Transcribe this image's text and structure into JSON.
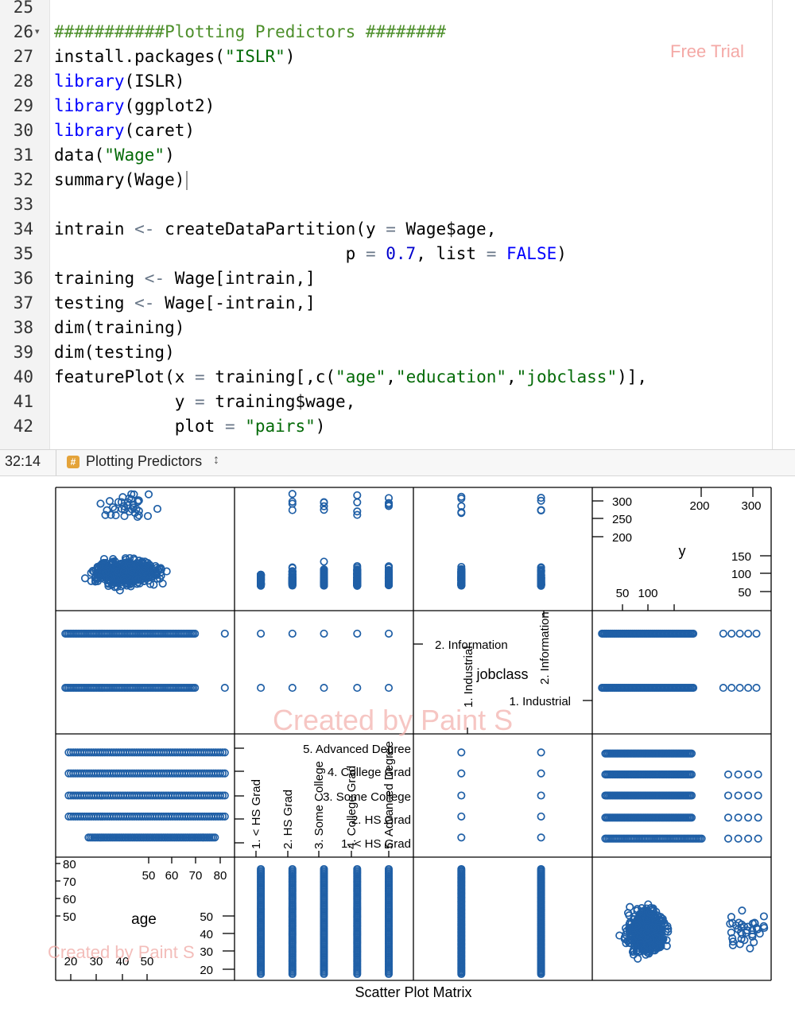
{
  "editor": {
    "lines": [
      {
        "n": "25",
        "fold": false,
        "tokens": []
      },
      {
        "n": "26",
        "fold": true,
        "tokens": [
          {
            "t": "###########Plotting Predictors ########",
            "c": "com"
          }
        ]
      },
      {
        "n": "27",
        "fold": false,
        "tokens": [
          {
            "t": "install.packages(",
            "c": ""
          },
          {
            "t": "\"ISLR\"",
            "c": "str"
          },
          {
            "t": ")",
            "c": ""
          }
        ]
      },
      {
        "n": "28",
        "fold": false,
        "tokens": [
          {
            "t": "library",
            "c": "kw"
          },
          {
            "t": "(ISLR)",
            "c": ""
          }
        ]
      },
      {
        "n": "29",
        "fold": false,
        "tokens": [
          {
            "t": "library",
            "c": "kw"
          },
          {
            "t": "(ggplot2)",
            "c": ""
          }
        ]
      },
      {
        "n": "30",
        "fold": false,
        "tokens": [
          {
            "t": "library",
            "c": "kw"
          },
          {
            "t": "(caret)",
            "c": ""
          }
        ]
      },
      {
        "n": "31",
        "fold": false,
        "tokens": [
          {
            "t": "data(",
            "c": ""
          },
          {
            "t": "\"Wage\"",
            "c": "str"
          },
          {
            "t": ")",
            "c": ""
          }
        ]
      },
      {
        "n": "32",
        "fold": false,
        "tokens": [
          {
            "t": "summary(Wage)",
            "c": ""
          }
        ],
        "cursor": true
      },
      {
        "n": "33",
        "fold": false,
        "tokens": []
      },
      {
        "n": "34",
        "fold": false,
        "tokens": [
          {
            "t": "intrain ",
            "c": ""
          },
          {
            "t": "<-",
            "c": "op"
          },
          {
            "t": " createDataPartition(y ",
            "c": ""
          },
          {
            "t": "=",
            "c": "op"
          },
          {
            "t": " Wage$age,",
            "c": ""
          }
        ]
      },
      {
        "n": "35",
        "fold": false,
        "tokens": [
          {
            "t": "                             p ",
            "c": ""
          },
          {
            "t": "=",
            "c": "op"
          },
          {
            "t": " ",
            "c": ""
          },
          {
            "t": "0.7",
            "c": "num"
          },
          {
            "t": ", list ",
            "c": ""
          },
          {
            "t": "=",
            "c": "op"
          },
          {
            "t": " ",
            "c": ""
          },
          {
            "t": "FALSE",
            "c": "kw"
          },
          {
            "t": ")",
            "c": ""
          }
        ]
      },
      {
        "n": "36",
        "fold": false,
        "tokens": [
          {
            "t": "training ",
            "c": ""
          },
          {
            "t": "<-",
            "c": "op"
          },
          {
            "t": " Wage[intrain,]",
            "c": ""
          }
        ]
      },
      {
        "n": "37",
        "fold": false,
        "tokens": [
          {
            "t": "testing ",
            "c": ""
          },
          {
            "t": "<-",
            "c": "op"
          },
          {
            "t": " Wage[-intrain,]",
            "c": ""
          }
        ]
      },
      {
        "n": "38",
        "fold": false,
        "tokens": [
          {
            "t": "dim(training)",
            "c": ""
          }
        ]
      },
      {
        "n": "39",
        "fold": false,
        "tokens": [
          {
            "t": "dim(testing)",
            "c": ""
          }
        ]
      },
      {
        "n": "40",
        "fold": false,
        "tokens": [
          {
            "t": "featurePlot(x ",
            "c": ""
          },
          {
            "t": "=",
            "c": "op"
          },
          {
            "t": " training[,c(",
            "c": ""
          },
          {
            "t": "\"age\"",
            "c": "str"
          },
          {
            "t": ",",
            "c": ""
          },
          {
            "t": "\"education\"",
            "c": "str"
          },
          {
            "t": ",",
            "c": ""
          },
          {
            "t": "\"jobclass\"",
            "c": "str"
          },
          {
            "t": ")],",
            "c": ""
          }
        ]
      },
      {
        "n": "41",
        "fold": false,
        "tokens": [
          {
            "t": "            y ",
            "c": ""
          },
          {
            "t": "=",
            "c": "op"
          },
          {
            "t": " training$wage,",
            "c": ""
          }
        ]
      },
      {
        "n": "42",
        "fold": false,
        "tokens": [
          {
            "t": "            plot ",
            "c": ""
          },
          {
            "t": "=",
            "c": "op"
          },
          {
            "t": " ",
            "c": ""
          },
          {
            "t": "\"pairs\"",
            "c": "str"
          },
          {
            "t": ")",
            "c": ""
          }
        ]
      }
    ]
  },
  "watermarks": {
    "top": "Free Trial",
    "middle": "Created by Paint S",
    "lower": "Created by Paint S"
  },
  "status": {
    "position": "32:14",
    "badge": "#",
    "section": "Plotting Predictors",
    "arrows": "↕"
  },
  "colors": {
    "point": "#1f5fa6",
    "keyword": "#0000ff",
    "string": "#036a07",
    "comment": "#4d8f2b",
    "number": "#0000cd"
  },
  "chart_data": {
    "type": "scatter",
    "title": "Scatter Plot Matrix",
    "variables": [
      "age",
      "jobclass",
      "y"
    ],
    "diag_labels": {
      "y": "y",
      "jobclass": "jobclass",
      "age": "age"
    },
    "y_axis": {
      "ticks_top": [
        "200",
        "300"
      ],
      "ticks_right": [
        "150",
        "100",
        "50"
      ],
      "ticks_left": [
        "300",
        "250",
        "200"
      ],
      "ticks_bottom": [
        "50",
        "100"
      ]
    },
    "jobclass_axis": {
      "left_labels": [
        "2. Information",
        "1. Industrial"
      ],
      "top_label": "2. Information",
      "bottom_label": "1. Industrial"
    },
    "education_axis": {
      "right_labels": [
        "5. Advanced Degree",
        "4. College Grad",
        "3. Some College",
        "2. HS Grad",
        "1. < HS Grad"
      ],
      "bottom_labels": [
        "1. < HS Grad",
        "2. HS Grad",
        "3. Some College",
        "4. College Grad",
        "5. Advanced Degree"
      ]
    },
    "age_axis": {
      "ticks_top": [
        "50",
        "60",
        "70",
        "80"
      ],
      "ticks_right": [
        "50",
        "40",
        "30",
        "20"
      ],
      "ticks_left": [
        "80",
        "70",
        "60",
        "50"
      ],
      "ticks_bottom": [
        "20",
        "30",
        "40",
        "50"
      ]
    },
    "wage_range": [
      20,
      320
    ],
    "age_range": [
      18,
      80
    ],
    "education_wage_ranges": [
      [
        20,
        100
      ],
      [
        20,
        300
      ],
      [
        20,
        320
      ],
      [
        20,
        320
      ],
      [
        20,
        320
      ]
    ],
    "jobclass_wage_ranges": [
      [
        20,
        320
      ],
      [
        20,
        320
      ]
    ]
  }
}
